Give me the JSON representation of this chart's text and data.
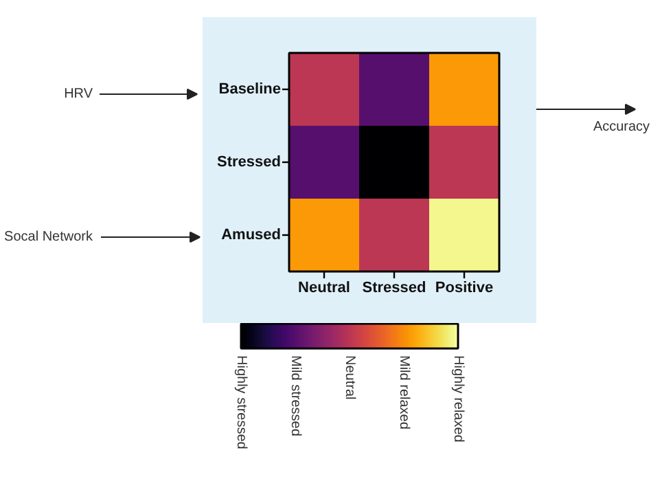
{
  "chart_data": {
    "type": "heatmap",
    "categories": [
      "Neutral",
      "Stressed",
      "Positive"
    ],
    "y_categories": [
      "Baseline",
      "Stressed",
      "Amused"
    ],
    "cells": [
      [
        2,
        1,
        3.1
      ],
      [
        1,
        0,
        2
      ],
      [
        3.1,
        2,
        3.9
      ]
    ],
    "clim": [
      0,
      4
    ],
    "cticks": [
      {
        "value": 0,
        "label": "Highly stressed"
      },
      {
        "value": 1,
        "label": "Mild stressed"
      },
      {
        "value": 2,
        "label": "Neutral"
      },
      {
        "value": 3,
        "label": "Mild relaxed"
      },
      {
        "value": 4,
        "label": "Highly relaxed"
      }
    ],
    "annotations": [
      "HRV",
      "Socal Network",
      "Accuracy"
    ]
  }
}
